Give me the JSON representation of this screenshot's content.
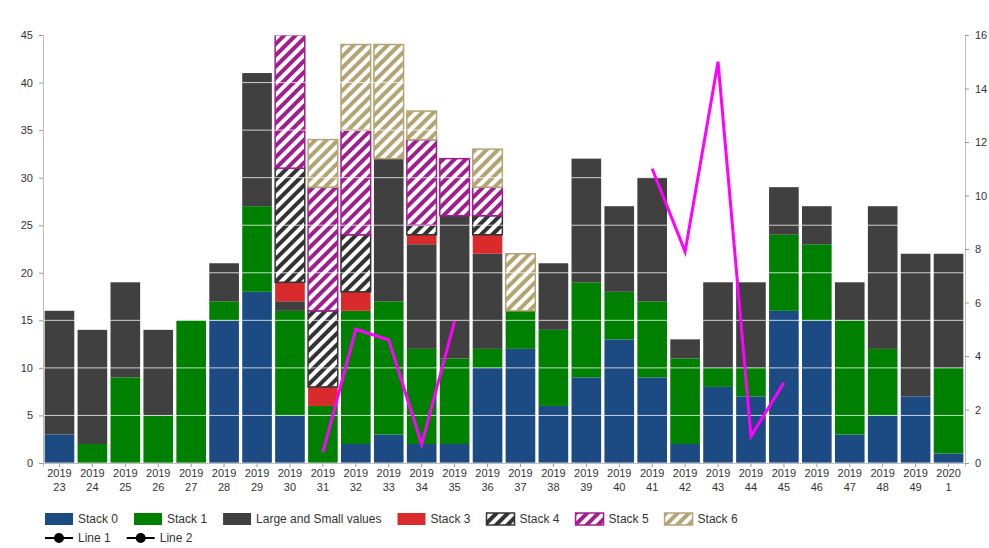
{
  "chart_data": {
    "type": "bar",
    "stacked": true,
    "grid": true,
    "legend": "bottom",
    "categories": [
      "2019\n23",
      "2019\n24",
      "2019\n25",
      "2019\n26",
      "2019\n27",
      "2019\n28",
      "2019\n29",
      "2019\n30",
      "2019\n31",
      "2019\n32",
      "2019\n33",
      "2019\n34",
      "2019\n35",
      "2019\n36",
      "2019\n37",
      "2019\n38",
      "2019\n39",
      "2019\n40",
      "2019\n41",
      "2019\n42",
      "2019\n43",
      "2019\n44",
      "2019\n45",
      "2019\n46",
      "2019\n47",
      "2019\n48",
      "2019\n49",
      "2020\n1"
    ],
    "ylim": [
      0,
      45
    ],
    "yticks": [
      0,
      5,
      10,
      15,
      20,
      25,
      30,
      35,
      40,
      45
    ],
    "y2lim": [
      0,
      16
    ],
    "y2ticks": [
      0,
      2,
      4,
      6,
      8,
      10,
      12,
      14,
      16
    ],
    "series": [
      {
        "name": "Stack 0",
        "type": "bar",
        "color": "#1b4b82",
        "values": [
          3,
          0,
          0,
          0,
          0,
          15,
          18,
          5,
          0,
          2,
          3,
          2,
          2,
          10,
          12,
          6,
          9,
          13,
          9,
          2,
          8,
          7,
          16,
          15,
          3,
          5,
          7,
          1
        ]
      },
      {
        "name": "Stack 1",
        "type": "bar",
        "color": "#008000",
        "values": [
          0,
          2,
          9,
          5,
          15,
          2,
          9,
          11,
          6,
          14,
          14,
          10,
          9,
          2,
          4,
          8,
          10,
          5,
          8,
          9,
          2,
          3,
          8,
          8,
          12,
          7,
          0,
          9
        ]
      },
      {
        "name": "Large and Small values",
        "type": "bar",
        "color": "#404040",
        "values": [
          13,
          12,
          10,
          9,
          0,
          4,
          14,
          1,
          0,
          0,
          15,
          11,
          15,
          10,
          0,
          7,
          13,
          9,
          13,
          2,
          9,
          9,
          5,
          4,
          4,
          15,
          15,
          12
        ]
      },
      {
        "name": "Stack 3",
        "type": "bar",
        "color": "#d92b2b",
        "values": [
          0,
          0,
          0,
          0,
          0,
          0,
          0,
          2,
          2,
          2,
          0,
          1,
          0,
          2,
          0,
          0,
          0,
          0,
          0,
          0,
          0,
          0,
          0,
          0,
          0,
          0,
          0,
          0
        ]
      },
      {
        "name": "Stack 4",
        "type": "bar",
        "color": "#333333",
        "values": [
          0,
          0,
          0,
          0,
          0,
          0,
          0,
          12,
          8,
          6,
          0,
          1,
          0,
          2,
          0,
          0,
          0,
          0,
          0,
          0,
          0,
          0,
          0,
          0,
          0,
          0,
          0,
          0
        ]
      },
      {
        "name": "Stack 5",
        "type": "bar",
        "color": "#a01f8e",
        "values": [
          0,
          0,
          0,
          0,
          0,
          0,
          0,
          14,
          13,
          11,
          0,
          9,
          6,
          3,
          0,
          0,
          0,
          0,
          0,
          0,
          0,
          0,
          0,
          0,
          0,
          0,
          0,
          0
        ]
      },
      {
        "name": "Stack 6",
        "type": "bar",
        "color": "#b3a573",
        "values": [
          0,
          0,
          0,
          0,
          0,
          0,
          0,
          0,
          5,
          9,
          12,
          3,
          0,
          4,
          6,
          0,
          0,
          0,
          0,
          0,
          0,
          0,
          0,
          0,
          0,
          0,
          0,
          0
        ]
      },
      {
        "name": "Line 1",
        "type": "line",
        "axis": "y2",
        "color": "#ff00ff",
        "values": [
          null,
          null,
          null,
          null,
          null,
          null,
          null,
          null,
          0.4,
          5.0,
          4.6,
          0.7,
          5.3,
          null,
          null,
          null,
          null,
          null,
          null,
          null,
          null,
          null,
          null,
          null,
          null,
          null,
          null,
          null
        ]
      },
      {
        "name": "Line 2",
        "type": "line",
        "axis": "y2",
        "color": "#ff00ff",
        "values": [
          null,
          null,
          null,
          null,
          null,
          null,
          null,
          null,
          null,
          null,
          null,
          null,
          null,
          null,
          null,
          null,
          null,
          null,
          11.0,
          7.9,
          15.0,
          1.0,
          3.0,
          null,
          null,
          null,
          null,
          null
        ]
      }
    ]
  }
}
